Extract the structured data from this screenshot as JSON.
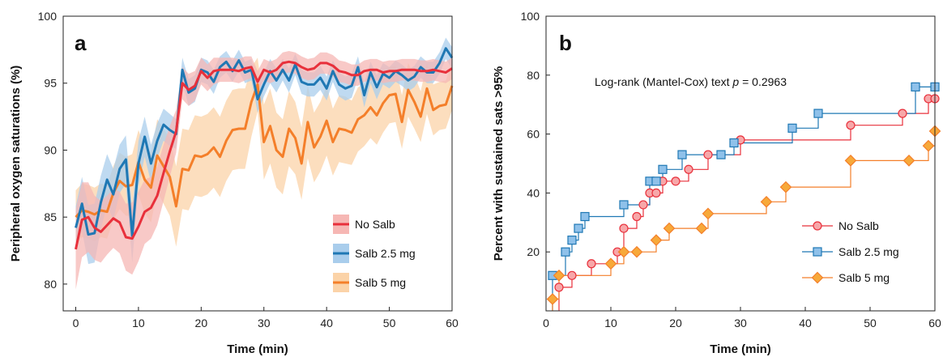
{
  "colors": {
    "no_salb": "#e8303b",
    "salb_25": "#1f78b4",
    "salb_5": "#f47f2a",
    "no_salb_band": "#f6b7b4",
    "salb_25_band": "#a9cdec",
    "salb_5_band": "#fbd3a8",
    "km_red_fill": "#f7a7a9",
    "km_blue_fill": "#8fc1ea",
    "km_orange_fill": "#f7a93a"
  },
  "chart_data": [
    {
      "type": "line",
      "panel_label": "a",
      "xlabel": "Time (min)",
      "ylabel": "Peripheral oxygen saturations (%)",
      "xlim": [
        -2,
        60
      ],
      "ylim": [
        78,
        100
      ],
      "xticks": [
        0,
        10,
        20,
        30,
        40,
        50,
        60
      ],
      "yticks": [
        80,
        85,
        90,
        95,
        100
      ],
      "legend": "bottom-right",
      "x": [
        0,
        1,
        2,
        3,
        4,
        5,
        6,
        7,
        8,
        9,
        10,
        11,
        12,
        13,
        14,
        15,
        16,
        17,
        18,
        19,
        20,
        21,
        22,
        23,
        24,
        25,
        26,
        27,
        28,
        29,
        30,
        31,
        32,
        33,
        34,
        35,
        36,
        37,
        38,
        39,
        40,
        41,
        42,
        43,
        44,
        45,
        46,
        47,
        48,
        49,
        50,
        51,
        52,
        53,
        54,
        55,
        56,
        57,
        58,
        59,
        60
      ],
      "series": [
        {
          "name": "No Salb",
          "color_key": "no_salb",
          "band_key": "no_salb_band",
          "values": [
            82.6,
            84.8,
            85.0,
            84.2,
            83.9,
            84.4,
            84.9,
            84.6,
            83.5,
            83.4,
            84.3,
            85.4,
            85.7,
            86.6,
            88.3,
            89.9,
            91.4,
            95.0,
            94.5,
            94.8,
            95.9,
            95.4,
            95.9,
            96.0,
            96.0,
            96.0,
            95.9,
            96.1,
            96.2,
            95.1,
            96.0,
            95.8,
            96.0,
            96.5,
            96.6,
            96.5,
            96.2,
            96.0,
            96.1,
            96.5,
            96.5,
            96.3,
            95.9,
            95.8,
            95.6,
            95.6,
            95.9,
            96.0,
            96.0,
            95.8,
            95.9,
            95.9,
            96.0,
            96.0,
            96.0,
            95.9,
            95.9,
            96.0,
            95.9,
            95.8,
            96.1
          ],
          "band": [
            3.0,
            2.8,
            2.6,
            2.4,
            2.3,
            2.2,
            2.2,
            2.3,
            2.5,
            2.7,
            2.6,
            2.4,
            2.3,
            2.2,
            2.1,
            1.9,
            1.6,
            1.2,
            1.2,
            1.1,
            1.0,
            1.0,
            1.0,
            0.9,
            0.9,
            0.9,
            0.9,
            0.9,
            0.8,
            0.8,
            0.8,
            0.8,
            0.8,
            0.8,
            0.8,
            0.8,
            0.8,
            0.8,
            0.8,
            0.8,
            0.8,
            0.8,
            0.8,
            0.8,
            0.8,
            0.8,
            0.8,
            0.8,
            0.8,
            0.8,
            0.8,
            0.8,
            0.8,
            0.8,
            0.8,
            0.8,
            0.8,
            0.8,
            0.8,
            0.8,
            0.8
          ]
        },
        {
          "name": "Salb 2.5 mg",
          "color_key": "salb_25",
          "band_key": "salb_25_band",
          "values": [
            84.2,
            86.0,
            83.7,
            83.8,
            86.1,
            87.8,
            86.7,
            88.6,
            89.3,
            83.6,
            89.0,
            91.0,
            89.0,
            90.7,
            91.9,
            91.5,
            91.2,
            96.0,
            94.3,
            94.6,
            96.0,
            95.8,
            95.1,
            96.2,
            96.6,
            95.9,
            96.7,
            95.8,
            96.0,
            93.8,
            94.9,
            95.9,
            95.2,
            96.0,
            95.2,
            96.4,
            95.1,
            94.9,
            94.9,
            95.4,
            94.6,
            95.9,
            94.9,
            94.6,
            94.8,
            96.2,
            94.1,
            95.8,
            94.7,
            95.7,
            95.4,
            95.9,
            95.6,
            95.2,
            95.5,
            96.2,
            95.8,
            95.8,
            96.5,
            97.6,
            96.9
          ],
          "band": [
            1.6,
            2.0,
            2.2,
            2.2,
            2.0,
            1.9,
            1.9,
            1.8,
            1.8,
            2.0,
            1.7,
            1.5,
            1.4,
            1.3,
            1.2,
            1.2,
            1.1,
            0.9,
            1.0,
            1.0,
            0.9,
            0.9,
            0.9,
            0.8,
            0.8,
            0.8,
            0.8,
            0.8,
            0.8,
            1.0,
            0.9,
            0.9,
            0.9,
            0.8,
            0.9,
            0.8,
            0.9,
            0.9,
            0.9,
            0.9,
            0.9,
            0.8,
            0.9,
            0.9,
            0.9,
            0.8,
            0.9,
            0.8,
            0.9,
            0.8,
            0.8,
            0.8,
            0.8,
            0.8,
            0.8,
            0.8,
            0.8,
            0.8,
            0.8,
            0.8,
            0.8
          ]
        },
        {
          "name": "Salb 5 mg",
          "color_key": "salb_5",
          "band_key": "salb_5_band",
          "values": [
            85.0,
            85.5,
            85.4,
            85.2,
            85.5,
            85.4,
            86.8,
            87.7,
            87.3,
            87.4,
            89.1,
            87.8,
            87.2,
            89.6,
            88.8,
            88.0,
            85.8,
            88.6,
            88.5,
            89.6,
            89.5,
            89.7,
            90.2,
            89.5,
            90.7,
            91.5,
            91.6,
            91.6,
            93.6,
            94.9,
            90.6,
            91.8,
            90.0,
            89.5,
            91.6,
            90.9,
            89.0,
            92.1,
            90.2,
            91.0,
            92.2,
            90.6,
            91.6,
            91.5,
            91.3,
            92.3,
            92.6,
            93.2,
            92.6,
            93.5,
            94.1,
            94.2,
            92.1,
            94.5,
            93.6,
            92.5,
            94.6,
            93.0,
            93.3,
            93.4,
            94.8
          ],
          "band": [
            2.0,
            2.0,
            2.0,
            2.0,
            2.0,
            2.0,
            2.0,
            2.1,
            2.2,
            2.3,
            2.4,
            2.5,
            2.6,
            2.7,
            2.8,
            2.9,
            3.0,
            3.0,
            3.0,
            3.0,
            3.0,
            3.0,
            3.0,
            3.0,
            3.0,
            3.0,
            3.0,
            3.0,
            2.6,
            2.0,
            2.8,
            2.8,
            2.8,
            2.8,
            2.8,
            2.7,
            2.7,
            2.7,
            2.6,
            2.6,
            2.6,
            2.5,
            2.5,
            2.5,
            2.4,
            2.4,
            2.3,
            2.3,
            2.2,
            2.2,
            2.1,
            2.1,
            2.0,
            2.0,
            2.0,
            1.9,
            1.9,
            1.9,
            1.8,
            1.8,
            1.8
          ]
        }
      ]
    },
    {
      "type": "line",
      "panel_label": "b",
      "xlabel": "Time (min)",
      "ylabel": "Percent with sustained sats >95%",
      "xlim": [
        0,
        60
      ],
      "ylim": [
        0,
        100
      ],
      "xticks": [
        0,
        10,
        20,
        30,
        40,
        50,
        60
      ],
      "yticks": [
        20,
        40,
        60,
        80,
        100
      ],
      "legend": "bottom-right",
      "annotation_prefix": "Log-rank (Mantel-Cox) text ",
      "annotation_p": "p",
      "annotation_suffix": " = 0.2963",
      "series": [
        {
          "name": "No Salb",
          "color_key": "no_salb",
          "fill_key": "km_red_fill",
          "marker": "circle",
          "points": [
            [
              2,
              8
            ],
            [
              4,
              12
            ],
            [
              7,
              16
            ],
            [
              11,
              20
            ],
            [
              12,
              28
            ],
            [
              14,
              32
            ],
            [
              15,
              36
            ],
            [
              16,
              40
            ],
            [
              17,
              40
            ],
            [
              18,
              44
            ],
            [
              20,
              44
            ],
            [
              22,
              48
            ],
            [
              25,
              53
            ],
            [
              30,
              58
            ],
            [
              47,
              63
            ],
            [
              55,
              67
            ],
            [
              59,
              72
            ],
            [
              60,
              72
            ]
          ]
        },
        {
          "name": "Salb 2.5 mg",
          "color_key": "salb_25",
          "fill_key": "km_blue_fill",
          "marker": "square",
          "points": [
            [
              1,
              12
            ],
            [
              3,
              20
            ],
            [
              4,
              24
            ],
            [
              5,
              28
            ],
            [
              6,
              32
            ],
            [
              12,
              36
            ],
            [
              16,
              44
            ],
            [
              17,
              44
            ],
            [
              18,
              48
            ],
            [
              21,
              53
            ],
            [
              27,
              53
            ],
            [
              29,
              57
            ],
            [
              38,
              62
            ],
            [
              42,
              67
            ],
            [
              57,
              76
            ],
            [
              60,
              76
            ]
          ]
        },
        {
          "name": "Salb 5 mg",
          "color_key": "salb_5",
          "fill_key": "km_orange_fill",
          "marker": "diamond",
          "points": [
            [
              1,
              4
            ],
            [
              2,
              12
            ],
            [
              10,
              16
            ],
            [
              12,
              20
            ],
            [
              14,
              20
            ],
            [
              17,
              24
            ],
            [
              19,
              28
            ],
            [
              24,
              28
            ],
            [
              25,
              33
            ],
            [
              34,
              37
            ],
            [
              37,
              42
            ],
            [
              47,
              51
            ],
            [
              56,
              51
            ],
            [
              59,
              56
            ],
            [
              60,
              61
            ]
          ]
        }
      ]
    }
  ]
}
